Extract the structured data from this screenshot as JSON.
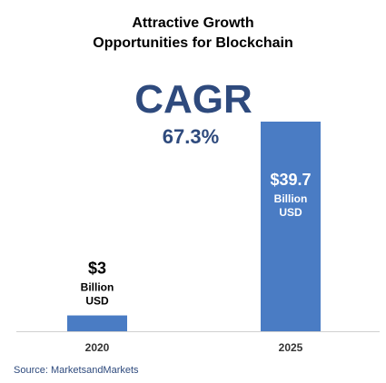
{
  "colors": {
    "bar": "#4a7cc4",
    "accent": "#2e4a7d",
    "label_on_bar": "#ffffff",
    "label_dark": "#000000",
    "source": "#2e4a7d",
    "axis": "#d0d0d0"
  },
  "chart_data": {
    "type": "bar",
    "title": [
      "Attractive Growth",
      "Opportunities for Blockchain"
    ],
    "xlabel": "",
    "ylabel": "",
    "ylim": [
      0,
      40
    ],
    "grid": false,
    "categories": [
      "2020",
      "2025"
    ],
    "values": [
      3,
      39.7
    ],
    "data_labels": [
      {
        "value": "$3",
        "unit_line1": "Billion",
        "unit_line2": "USD"
      },
      {
        "value": "$39.7",
        "unit_line1": "Billion",
        "unit_line2": "USD"
      }
    ],
    "annotation": {
      "label": "CAGR",
      "value": "67.3%"
    },
    "source": "Source: MarketsandMarkets"
  }
}
